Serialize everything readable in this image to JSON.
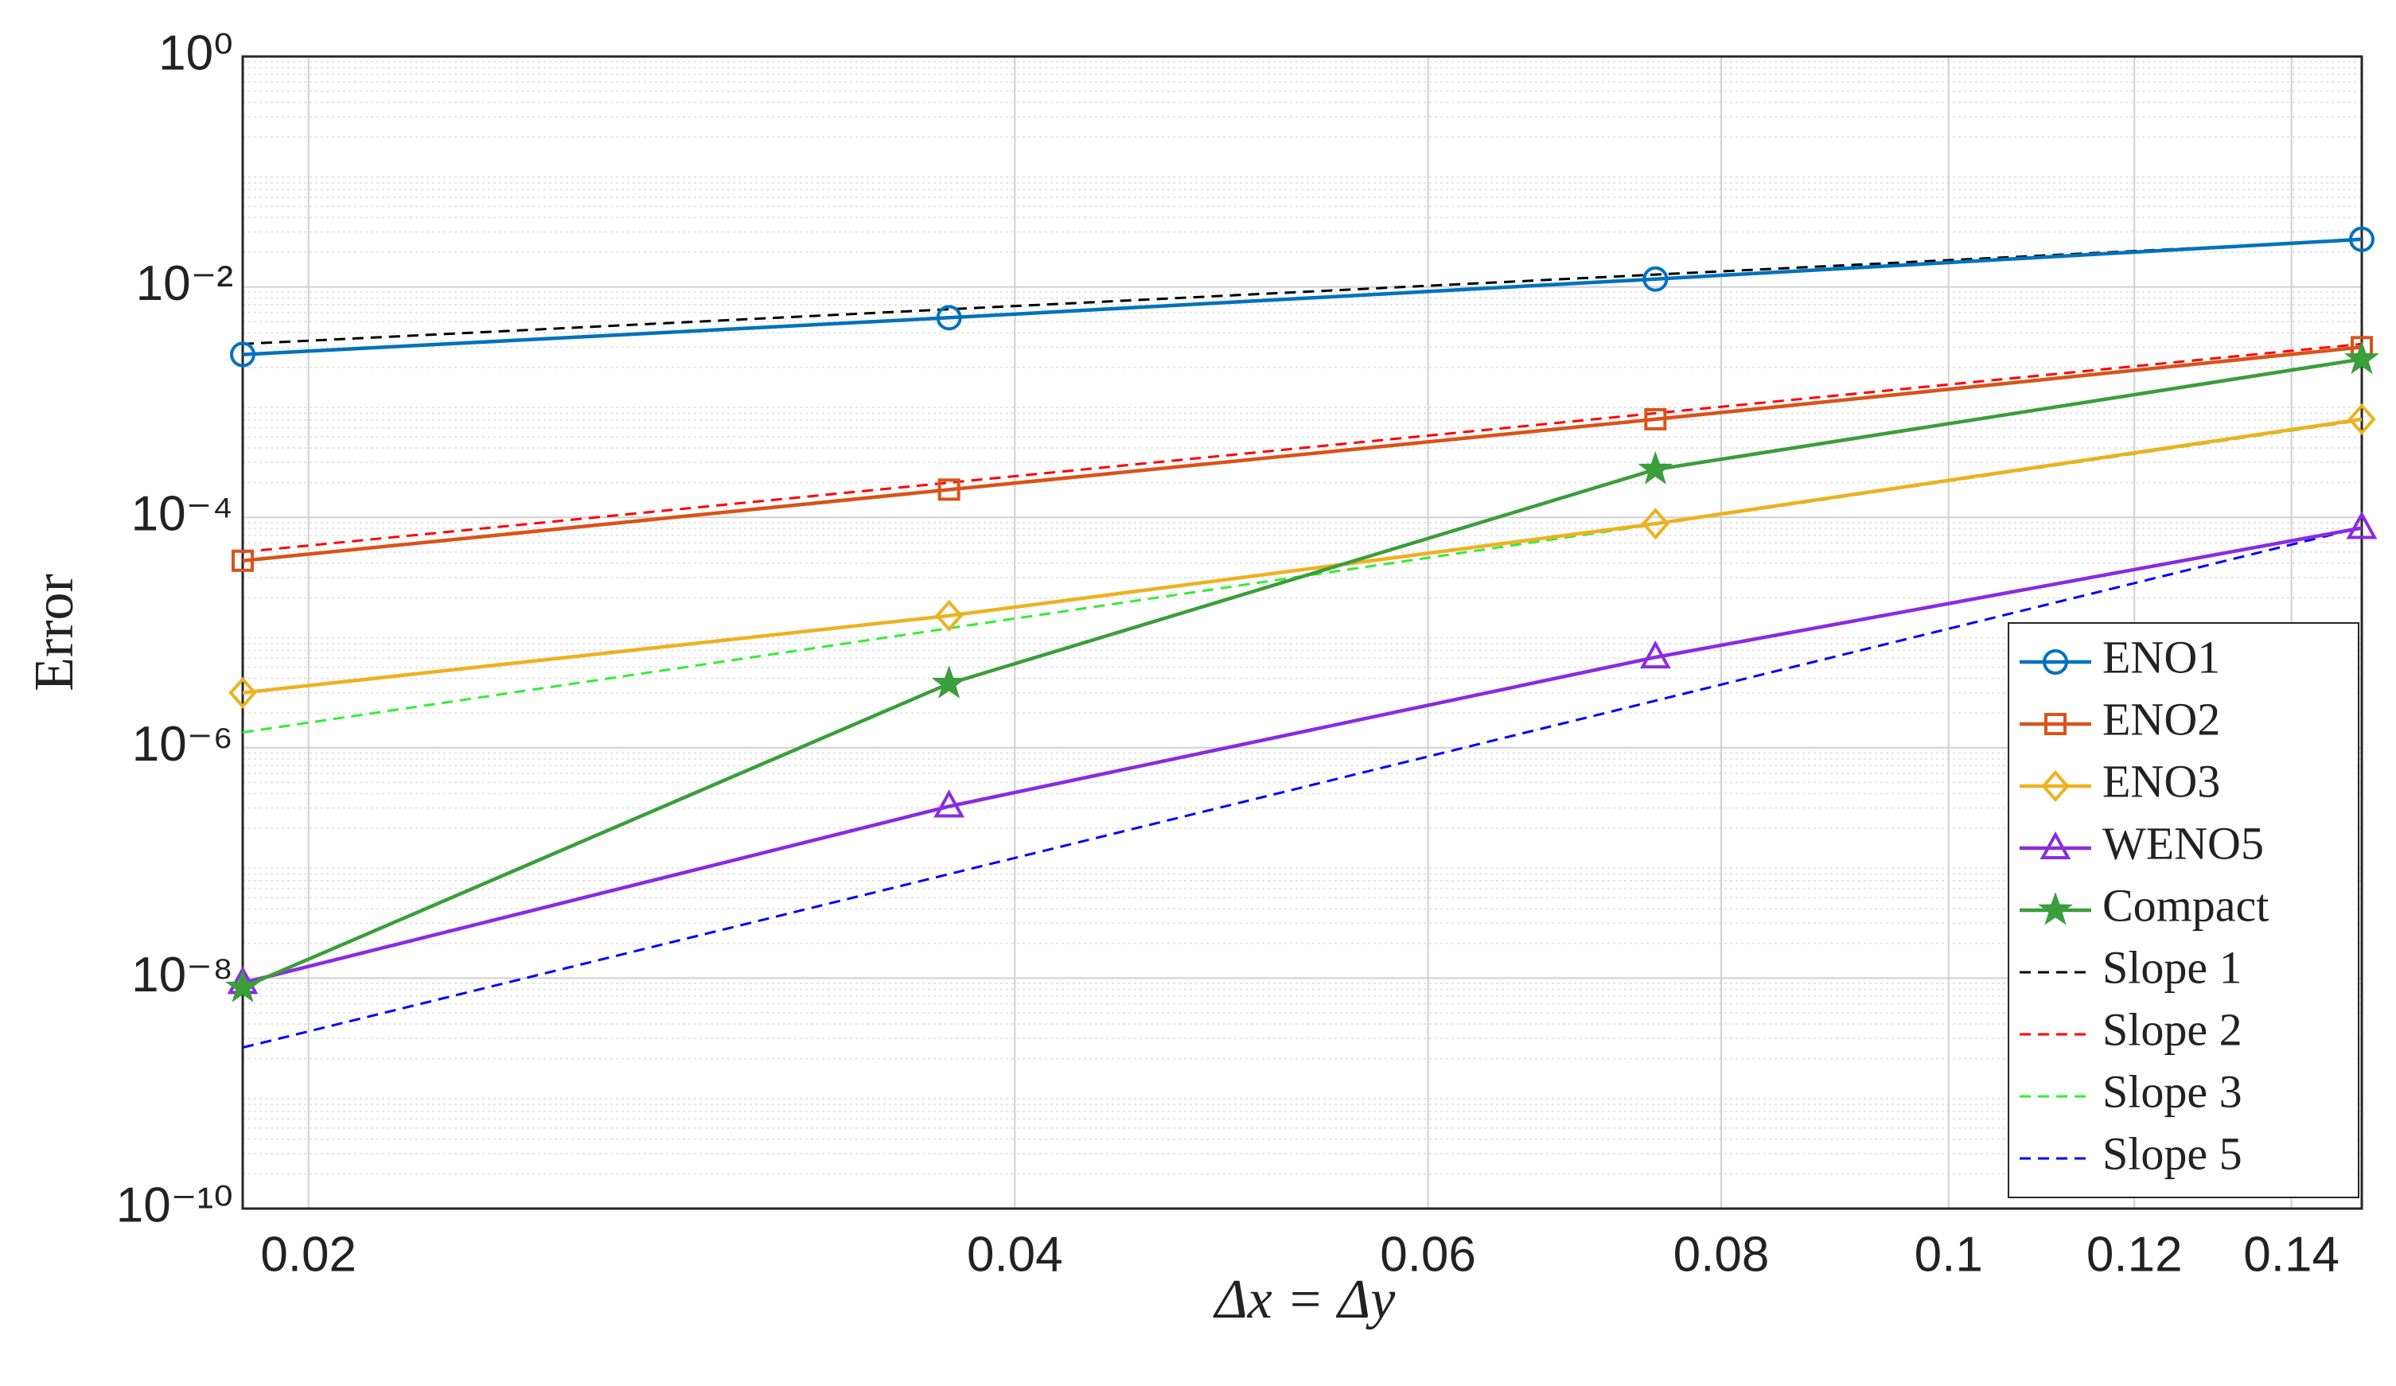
{
  "chart_data": {
    "type": "line",
    "xlabel": "Δx = Δy",
    "ylabel": "Error",
    "xscale": "log",
    "yscale": "log",
    "grid": true,
    "legend": "lower right",
    "x": [
      0.01875,
      0.0375,
      0.075,
      0.15
    ],
    "xlim": [
      0.01875,
      0.15
    ],
    "xticks": [
      0.02,
      0.04,
      0.06,
      0.08,
      0.1,
      0.12,
      0.14
    ],
    "ylim": [
      1e-10,
      1
    ],
    "yticks": [
      {
        "value": 1e-10,
        "label": "10⁻¹⁰"
      },
      {
        "value": 1e-08,
        "label": "10⁻⁸"
      },
      {
        "value": 1e-06,
        "label": "10⁻⁶"
      },
      {
        "value": 0.0001,
        "label": "10⁻⁴"
      },
      {
        "value": 0.01,
        "label": "10⁻²"
      },
      {
        "value": 1,
        "label": "10⁰"
      }
    ],
    "series": [
      {
        "name": "ENO1",
        "color": "#0072bd",
        "marker": "circle",
        "values": [
          0.00259,
          0.0054,
          0.0117,
          0.0259
        ]
      },
      {
        "name": "ENO2",
        "color": "#d95319",
        "marker": "square",
        "values": [
          4.2e-05,
          0.000174,
          0.00071,
          0.003
        ]
      },
      {
        "name": "ENO3",
        "color": "#edb120",
        "marker": "diamond",
        "values": [
          3e-06,
          1.4e-05,
          8.8e-05,
          0.00071
        ]
      },
      {
        "name": "WENO5",
        "color": "#8a2be2",
        "marker": "triangle",
        "values": [
          9.1e-09,
          3.1e-07,
          6.1e-06,
          8.1e-05
        ]
      },
      {
        "name": "Compact",
        "color": "#3a9e3a",
        "marker": "star",
        "values": [
          8.3e-09,
          3.6e-06,
          0.00026,
          0.00236
        ]
      },
      {
        "name": "Slope 1",
        "color": "#000000",
        "dashed": true,
        "values": [
          0.0032,
          0.0064,
          0.0128,
          0.0256
        ]
      },
      {
        "name": "Slope 2",
        "color": "#ff0000",
        "dashed": true,
        "values": [
          5e-05,
          0.0002,
          0.0008,
          0.0032
        ]
      },
      {
        "name": "Slope 3",
        "color": "#33ee33",
        "dashed": true,
        "values": [
          1.36e-06,
          1.09e-05,
          8.7e-05,
          0.000696
        ]
      },
      {
        "name": "Slope 5",
        "color": "#0000ff",
        "dashed": true,
        "values": [
          2.5e-09,
          8e-08,
          2.56e-06,
          8.19e-05
        ]
      }
    ]
  }
}
